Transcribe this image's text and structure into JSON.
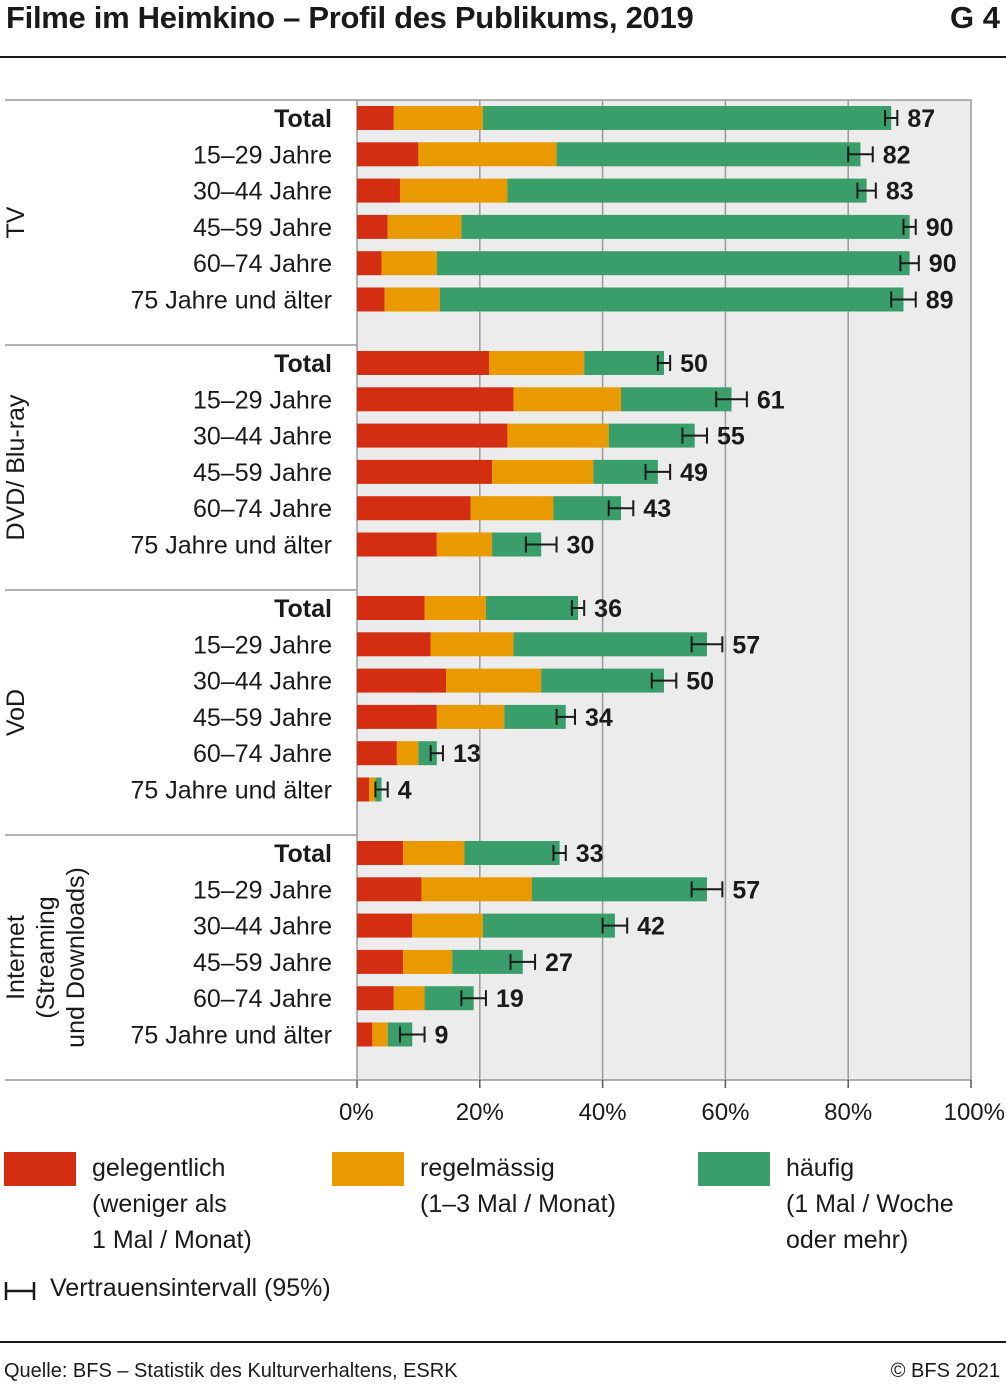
{
  "header": {
    "title": "Filme im Heimkino – Profil des Publikums, 2019",
    "graphic_number": "G 4"
  },
  "colors": {
    "gelegentlich": "#d42e12",
    "regelmaessig": "#e89a00",
    "haeufig": "#3a9e6a",
    "plot_bg": "#ececec",
    "grid": "#999999"
  },
  "chart_data": {
    "type": "bar",
    "orientation": "horizontal",
    "stacked": true,
    "xlim": [
      0,
      100
    ],
    "xticks": [
      "0%",
      "20%",
      "40%",
      "60%",
      "80%",
      "100%"
    ],
    "grid": true,
    "legend_position": "bottom",
    "series": [
      {
        "name": "gelegentlich (weniger als 1 Mal / Monat)",
        "key": "gelegentlich"
      },
      {
        "name": "regelmässig (1–3 Mal / Monat)",
        "key": "regelmaessig"
      },
      {
        "name": "häufig (1 Mal / Woche oder mehr)",
        "key": "haeufig"
      }
    ],
    "groups": [
      {
        "name": "TV",
        "rows": [
          {
            "label": "Total",
            "bold": true,
            "values": [
              6,
              14.5,
              66.5
            ],
            "total": 87,
            "ci": 1.0
          },
          {
            "label": "15–29 Jahre",
            "values": [
              10,
              22.5,
              49.5
            ],
            "total": 82,
            "ci": 2.0
          },
          {
            "label": "30–44 Jahre",
            "values": [
              7,
              17.5,
              58.5
            ],
            "total": 83,
            "ci": 1.5
          },
          {
            "label": "45–59 Jahre",
            "values": [
              5,
              12,
              73
            ],
            "total": 90,
            "ci": 1.0
          },
          {
            "label": "60–74 Jahre",
            "values": [
              4,
              9,
              77
            ],
            "total": 90,
            "ci": 1.5
          },
          {
            "label": "75 Jahre und älter",
            "values": [
              4.5,
              9,
              75.5
            ],
            "total": 89,
            "ci": 2.0
          }
        ]
      },
      {
        "name": "DVD / Blu-ray",
        "rows": [
          {
            "label": "Total",
            "bold": true,
            "values": [
              21.5,
              15.5,
              13
            ],
            "total": 50,
            "ci": 1.0
          },
          {
            "label": "15–29 Jahre",
            "values": [
              25.5,
              17.5,
              18
            ],
            "total": 61,
            "ci": 2.5
          },
          {
            "label": "30–44 Jahre",
            "values": [
              24.5,
              16.5,
              14
            ],
            "total": 55,
            "ci": 2.0
          },
          {
            "label": "45–59 Jahre",
            "values": [
              22,
              16.5,
              10.5
            ],
            "total": 49,
            "ci": 2.0
          },
          {
            "label": "60–74 Jahre",
            "values": [
              18.5,
              13.5,
              11
            ],
            "total": 43,
            "ci": 2.0
          },
          {
            "label": "75 Jahre und älter",
            "values": [
              13,
              9,
              8
            ],
            "total": 30,
            "ci": 2.5
          }
        ]
      },
      {
        "name": "VoD",
        "rows": [
          {
            "label": "Total",
            "bold": true,
            "values": [
              11,
              10,
              15
            ],
            "total": 36,
            "ci": 1.0
          },
          {
            "label": "15–29 Jahre",
            "values": [
              12,
              13.5,
              31.5
            ],
            "total": 57,
            "ci": 2.5
          },
          {
            "label": "30–44 Jahre",
            "values": [
              14.5,
              15.5,
              20
            ],
            "total": 50,
            "ci": 2.0
          },
          {
            "label": "45–59 Jahre",
            "values": [
              13,
              11,
              10
            ],
            "total": 34,
            "ci": 1.5
          },
          {
            "label": "60–74 Jahre",
            "values": [
              6.5,
              3.5,
              3
            ],
            "total": 13,
            "ci": 1.0
          },
          {
            "label": "75 Jahre und älter",
            "values": [
              2,
              1,
              1
            ],
            "total": 4,
            "ci": 1.0
          }
        ]
      },
      {
        "name": "Internet (Streaming und Downloads)",
        "name_lines": [
          "Internet",
          "(Streaming",
          "und Downloads)"
        ],
        "rows": [
          {
            "label": "Total",
            "bold": true,
            "values": [
              7.5,
              10,
              15.5
            ],
            "total": 33,
            "ci": 1.0
          },
          {
            "label": "15–29 Jahre",
            "values": [
              10.5,
              18,
              28.5
            ],
            "total": 57,
            "ci": 2.5
          },
          {
            "label": "30–44 Jahre",
            "values": [
              9,
              11.5,
              21.5
            ],
            "total": 42,
            "ci": 2.0
          },
          {
            "label": "45–59 Jahre",
            "values": [
              7.5,
              8,
              11.5
            ],
            "total": 27,
            "ci": 2.0
          },
          {
            "label": "60–74 Jahre",
            "values": [
              6,
              5,
              8
            ],
            "total": 19,
            "ci": 2.0
          },
          {
            "label": "75 Jahre und älter",
            "values": [
              2.5,
              2.5,
              4
            ],
            "total": 9,
            "ci": 2.0
          }
        ]
      }
    ]
  },
  "legend": {
    "gelegentlich": "gelegentlich\n(weniger als\n1 Mal / Monat)",
    "regelmaessig": "regelmässig\n(1–3 Mal / Monat)",
    "haeufig": "häufig\n(1 Mal / Woche\noder mehr)",
    "ci": "Vertrauensintervall (95%)"
  },
  "footer": {
    "source": "Quelle: BFS – Statistik des Kulturverhaltens, ESRK",
    "copyright": "© BFS 2021"
  }
}
